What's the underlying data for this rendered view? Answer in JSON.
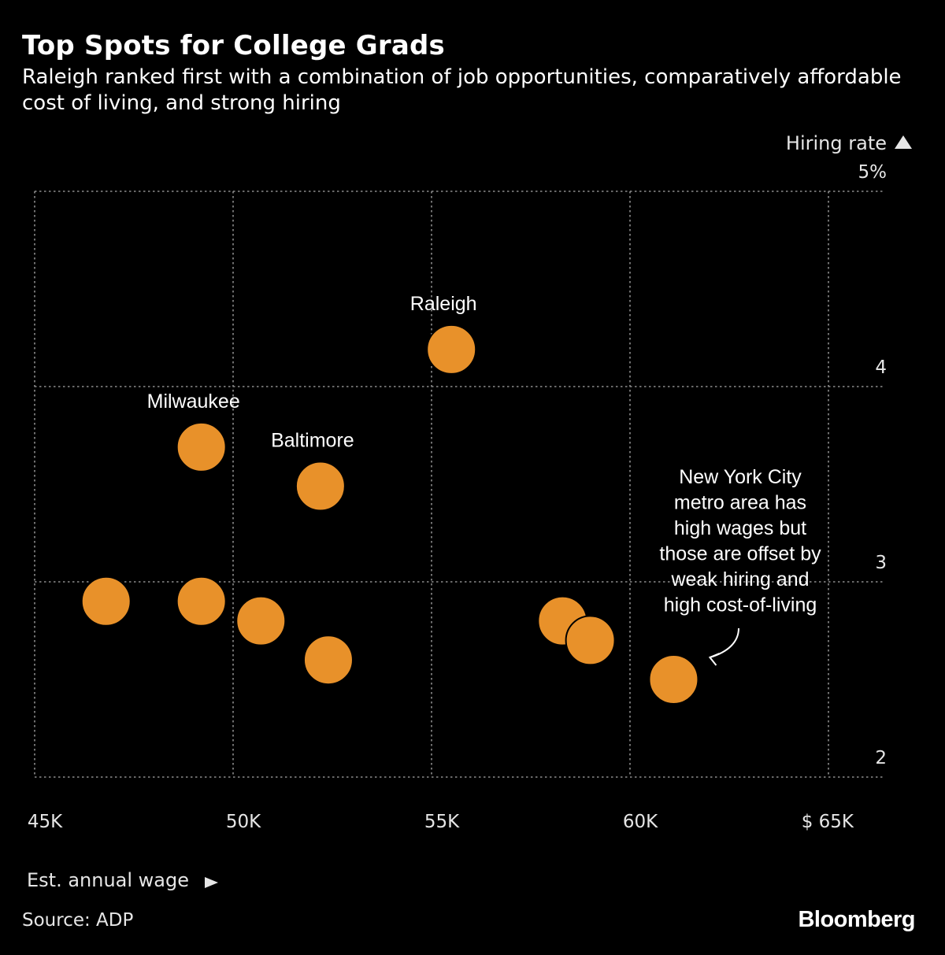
{
  "header": {
    "title": "Top Spots for College Grads",
    "subtitle": "Raleigh ranked first with a combination of job opportunities, comparatively affordable cost of living, and strong hiring"
  },
  "footer": {
    "source": "Source: ADP",
    "logo_text": "Bloomberg"
  },
  "chart_data": {
    "type": "scatter",
    "xlabel": "Est. annual wage",
    "ylabel": "Hiring rate",
    "xlim": [
      45000,
      65000
    ],
    "ylim": [
      2,
      5
    ],
    "x_ticks": [
      {
        "value": 45000,
        "label": "45K"
      },
      {
        "value": 50000,
        "label": "50K"
      },
      {
        "value": 55000,
        "label": "55K"
      },
      {
        "value": 60000,
        "label": "60K"
      },
      {
        "value": 65000,
        "label": "$ 65K"
      }
    ],
    "y_ticks": [
      {
        "value": 5,
        "label": "5%"
      },
      {
        "value": 4,
        "label": "4"
      },
      {
        "value": 3,
        "label": "3"
      },
      {
        "value": 2,
        "label": "2"
      }
    ],
    "grid": true,
    "marker_color": "#e8912a",
    "background_color": "#000000",
    "points": [
      {
        "x": 55500,
        "y": 4.19,
        "label": "Raleigh"
      },
      {
        "x": 49200,
        "y": 3.69,
        "label": "Milwaukee"
      },
      {
        "x": 52200,
        "y": 3.49,
        "label": "Baltimore"
      },
      {
        "x": 46800,
        "y": 2.9,
        "label": ""
      },
      {
        "x": 49200,
        "y": 2.9,
        "label": ""
      },
      {
        "x": 50700,
        "y": 2.8,
        "label": ""
      },
      {
        "x": 52400,
        "y": 2.6,
        "label": ""
      },
      {
        "x": 58300,
        "y": 2.8,
        "label": ""
      },
      {
        "x": 59000,
        "y": 2.7,
        "label": ""
      },
      {
        "x": 61100,
        "y": 2.5,
        "label": ""
      }
    ],
    "annotation": {
      "text_lines": [
        "New York City",
        "metro area has",
        "high wages but",
        "those are offset by",
        "weak hiring and",
        "high cost-of-living"
      ],
      "target_point_index": 9
    }
  }
}
